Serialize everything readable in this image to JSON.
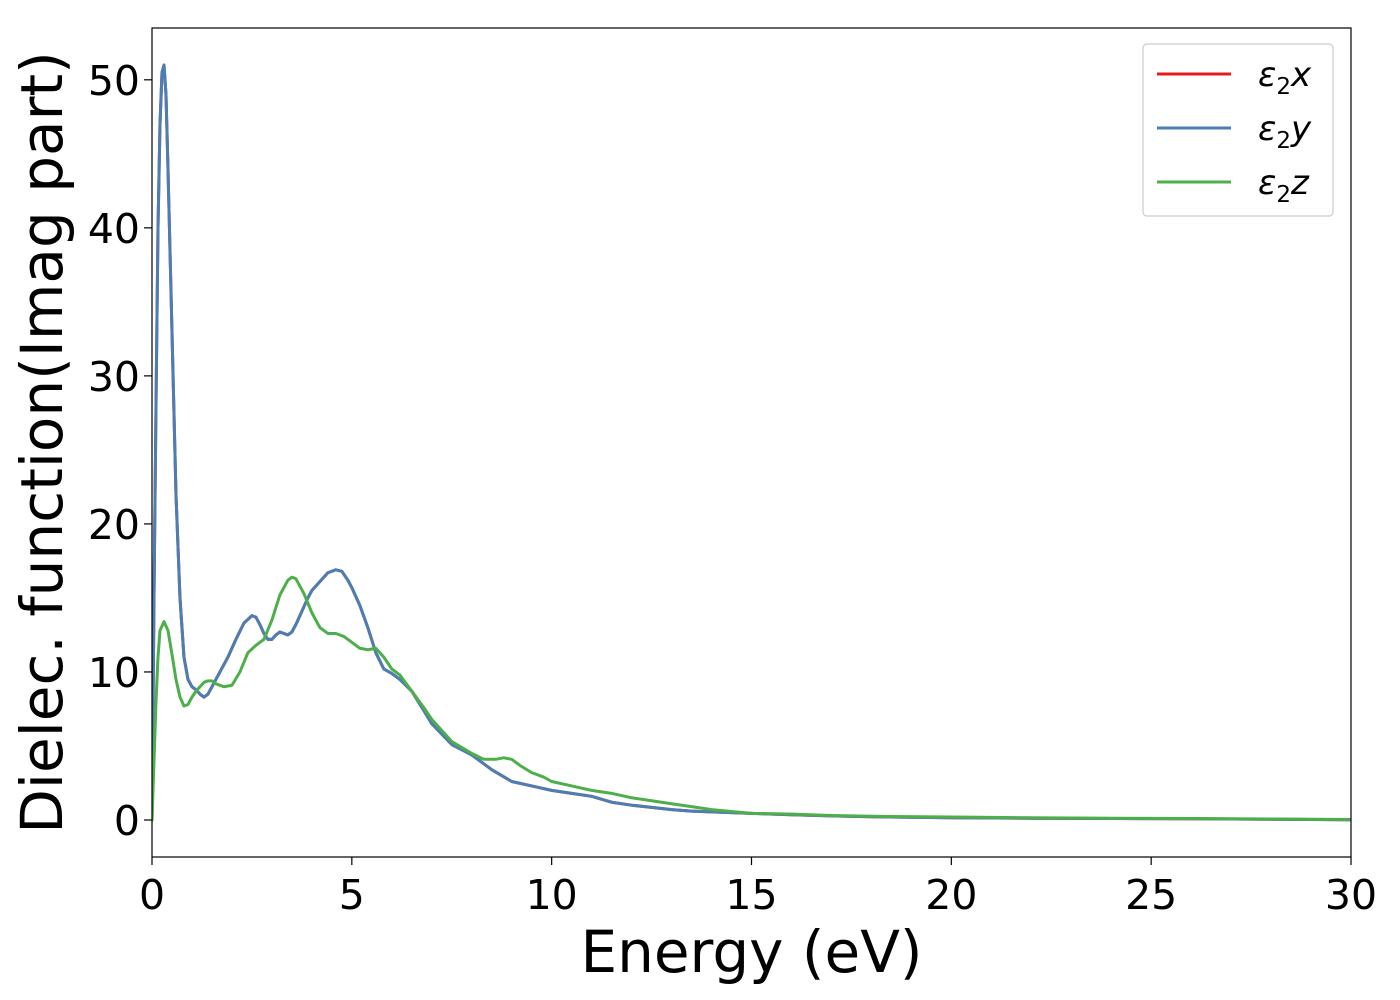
{
  "chart_data": {
    "type": "line",
    "title": "",
    "xlabel": "Energy (eV)",
    "ylabel": "Dielec. function(Imag part)",
    "xlim": [
      0,
      30
    ],
    "ylim": [
      -2.5,
      53.5
    ],
    "xticks": [
      "0",
      "5",
      "10",
      "15",
      "20",
      "25",
      "30"
    ],
    "yticks": [
      "0",
      "10",
      "20",
      "30",
      "40",
      "50"
    ],
    "xtick_values": [
      0,
      5,
      10,
      15,
      20,
      25,
      30
    ],
    "ytick_values": [
      0,
      10,
      20,
      30,
      40,
      50
    ],
    "grid": false,
    "legend_position": "top-right",
    "series": [
      {
        "name": "ε2x",
        "legend_base": "ε",
        "legend_sub": "2",
        "legend_var": "x",
        "color": "#e41a1c",
        "x": [
          0,
          0.05,
          0.1,
          0.15,
          0.2,
          0.25,
          0.3,
          0.35,
          0.4,
          0.5,
          0.6,
          0.7,
          0.8,
          0.9,
          1.0,
          1.1,
          1.2,
          1.3,
          1.4,
          1.5,
          1.7,
          1.9,
          2.1,
          2.3,
          2.5,
          2.6,
          2.7,
          2.8,
          2.9,
          3.0,
          3.1,
          3.2,
          3.3,
          3.4,
          3.5,
          3.6,
          3.7,
          3.8,
          3.9,
          4.0,
          4.2,
          4.4,
          4.6,
          4.75,
          4.9,
          5.0,
          5.2,
          5.4,
          5.6,
          5.8,
          6.0,
          6.2,
          6.5,
          6.8,
          7.0,
          7.5,
          8.0,
          8.5,
          9.0,
          9.5,
          10.0,
          10.5,
          11.0,
          11.5,
          12.0,
          12.5,
          13.0,
          13.5,
          14.0,
          15.0,
          16.0,
          17.0,
          18.0,
          20.0,
          22.0,
          24.0,
          26.0,
          28.0,
          30.0
        ],
        "y": [
          0,
          15,
          28,
          40,
          47,
          50.5,
          51,
          49,
          44,
          33,
          22,
          15,
          11,
          9.5,
          9.0,
          8.8,
          8.5,
          8.3,
          8.5,
          9.0,
          10.0,
          11.0,
          12.2,
          13.3,
          13.8,
          13.7,
          13.2,
          12.6,
          12.2,
          12.2,
          12.5,
          12.7,
          12.6,
          12.5,
          12.7,
          13.2,
          13.8,
          14.4,
          15.0,
          15.5,
          16.1,
          16.7,
          16.9,
          16.8,
          16.2,
          15.7,
          14.5,
          13.0,
          11.3,
          10.2,
          9.9,
          9.5,
          8.7,
          7.4,
          6.5,
          5.1,
          4.4,
          3.4,
          2.6,
          2.3,
          2.0,
          1.8,
          1.6,
          1.2,
          1.0,
          0.85,
          0.7,
          0.6,
          0.55,
          0.45,
          0.35,
          0.28,
          0.22,
          0.15,
          0.12,
          0.1,
          0.08,
          0.05,
          0.02
        ]
      },
      {
        "name": "ε2y",
        "legend_base": "ε",
        "legend_sub": "2",
        "legend_var": "y",
        "color": "#4a7fb5",
        "x": [
          0,
          0.05,
          0.1,
          0.15,
          0.2,
          0.25,
          0.3,
          0.35,
          0.4,
          0.5,
          0.6,
          0.7,
          0.8,
          0.9,
          1.0,
          1.1,
          1.2,
          1.3,
          1.4,
          1.5,
          1.7,
          1.9,
          2.1,
          2.3,
          2.5,
          2.6,
          2.7,
          2.8,
          2.9,
          3.0,
          3.1,
          3.2,
          3.3,
          3.4,
          3.5,
          3.6,
          3.7,
          3.8,
          3.9,
          4.0,
          4.2,
          4.4,
          4.6,
          4.75,
          4.9,
          5.0,
          5.2,
          5.4,
          5.6,
          5.8,
          6.0,
          6.2,
          6.5,
          6.8,
          7.0,
          7.5,
          8.0,
          8.5,
          9.0,
          9.5,
          10.0,
          10.5,
          11.0,
          11.5,
          12.0,
          12.5,
          13.0,
          13.5,
          14.0,
          15.0,
          16.0,
          17.0,
          18.0,
          20.0,
          22.0,
          24.0,
          26.0,
          28.0,
          30.0
        ],
        "y": [
          0,
          15,
          28,
          40,
          47,
          50.5,
          51,
          49,
          44,
          33,
          22,
          15,
          11,
          9.5,
          9.0,
          8.8,
          8.5,
          8.3,
          8.5,
          9.0,
          10.0,
          11.0,
          12.2,
          13.3,
          13.8,
          13.7,
          13.2,
          12.6,
          12.2,
          12.2,
          12.5,
          12.7,
          12.6,
          12.5,
          12.7,
          13.2,
          13.8,
          14.4,
          15.0,
          15.5,
          16.1,
          16.7,
          16.9,
          16.8,
          16.2,
          15.7,
          14.5,
          13.0,
          11.3,
          10.2,
          9.9,
          9.5,
          8.7,
          7.4,
          6.5,
          5.1,
          4.4,
          3.4,
          2.6,
          2.3,
          2.0,
          1.8,
          1.6,
          1.2,
          1.0,
          0.85,
          0.7,
          0.6,
          0.55,
          0.45,
          0.35,
          0.28,
          0.22,
          0.15,
          0.12,
          0.1,
          0.08,
          0.05,
          0.02
        ]
      },
      {
        "name": "ε2z",
        "legend_base": "ε",
        "legend_sub": "2",
        "legend_var": "z",
        "color": "#4daf4a",
        "x": [
          0,
          0.05,
          0.1,
          0.15,
          0.2,
          0.3,
          0.4,
          0.5,
          0.6,
          0.7,
          0.8,
          0.9,
          1.0,
          1.1,
          1.2,
          1.3,
          1.4,
          1.5,
          1.6,
          1.8,
          2.0,
          2.2,
          2.4,
          2.6,
          2.8,
          3.0,
          3.2,
          3.4,
          3.5,
          3.6,
          3.8,
          4.0,
          4.2,
          4.4,
          4.6,
          4.8,
          5.0,
          5.2,
          5.4,
          5.6,
          5.8,
          6.0,
          6.2,
          6.5,
          6.8,
          7.0,
          7.5,
          8.0,
          8.3,
          8.6,
          8.8,
          9.0,
          9.2,
          9.5,
          9.8,
          10.0,
          10.5,
          11.0,
          11.5,
          12.0,
          12.5,
          13.0,
          13.5,
          14.0,
          15.0,
          16.0,
          17.0,
          18.0,
          20.0,
          22.0,
          24.0,
          26.0,
          28.0,
          30.0
        ],
        "y": [
          0,
          4,
          8,
          11,
          12.8,
          13.4,
          12.8,
          11.2,
          9.5,
          8.3,
          7.7,
          7.8,
          8.3,
          8.7,
          9.0,
          9.3,
          9.4,
          9.4,
          9.2,
          9.0,
          9.1,
          10.0,
          11.3,
          11.8,
          12.2,
          13.5,
          15.2,
          16.2,
          16.4,
          16.3,
          15.3,
          14.0,
          13.0,
          12.6,
          12.6,
          12.4,
          12.0,
          11.6,
          11.5,
          11.6,
          11.0,
          10.2,
          9.8,
          8.7,
          7.6,
          6.8,
          5.3,
          4.5,
          4.1,
          4.1,
          4.2,
          4.1,
          3.7,
          3.2,
          2.9,
          2.6,
          2.3,
          2.0,
          1.8,
          1.5,
          1.3,
          1.1,
          0.9,
          0.7,
          0.45,
          0.4,
          0.3,
          0.25,
          0.2,
          0.15,
          0.12,
          0.1,
          0.07,
          0.03
        ]
      }
    ]
  }
}
